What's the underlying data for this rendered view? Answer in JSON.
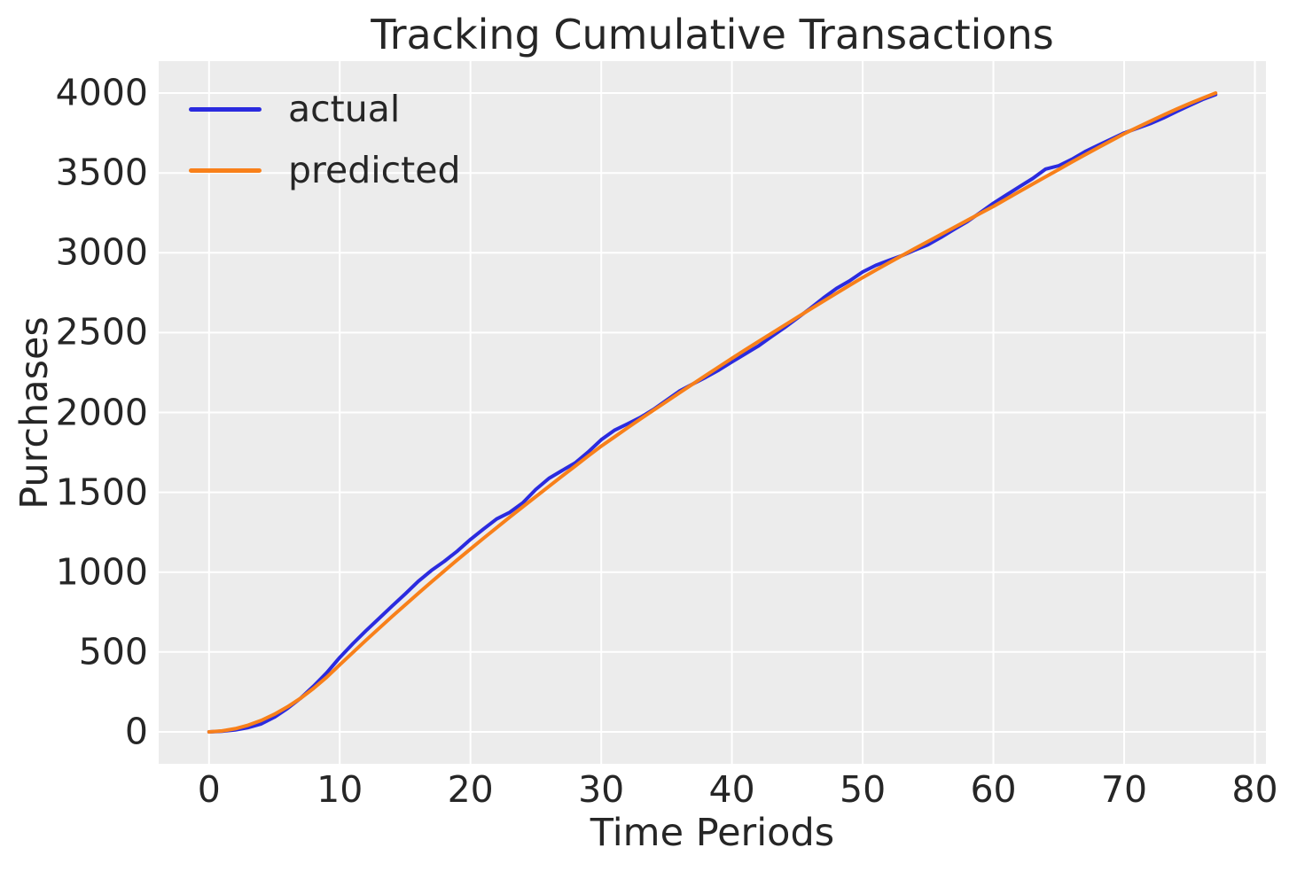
{
  "figure": {
    "background": "#ffffff",
    "plot_background": "#ececec",
    "grid_color": "#ffffff",
    "text_color": "#262626"
  },
  "chart_data": {
    "type": "line",
    "title": "Tracking Cumulative Transactions",
    "xlabel": "Time Periods",
    "ylabel": "Purchases",
    "grid": true,
    "legend_position": "upper left",
    "x_ticks": [
      0,
      10,
      20,
      30,
      40,
      50,
      60,
      70,
      80
    ],
    "y_ticks": [
      0,
      500,
      1000,
      1500,
      2000,
      2500,
      3000,
      3500,
      4000
    ],
    "xlim": [
      -3.85,
      80.85
    ],
    "ylim": [
      -200,
      4200
    ],
    "x": [
      0,
      1,
      2,
      3,
      4,
      5,
      6,
      7,
      8,
      9,
      10,
      11,
      12,
      13,
      14,
      15,
      16,
      17,
      18,
      19,
      20,
      21,
      22,
      23,
      24,
      25,
      26,
      27,
      28,
      29,
      30,
      31,
      32,
      33,
      34,
      35,
      36,
      37,
      38,
      39,
      40,
      41,
      42,
      43,
      44,
      45,
      46,
      47,
      48,
      49,
      50,
      51,
      52,
      53,
      54,
      55,
      56,
      57,
      58,
      59,
      60,
      61,
      62,
      63,
      64,
      65,
      66,
      67,
      68,
      69,
      70,
      71,
      72,
      73,
      74,
      75,
      76,
      77
    ],
    "series": [
      {
        "name": "actual",
        "color": "#2b2bdf",
        "values": [
          0,
          4,
          12,
          27,
          50,
          92,
          146,
          210,
          286,
          370,
          465,
          552,
          633,
          710,
          787,
          863,
          942,
          1010,
          1068,
          1132,
          1205,
          1270,
          1333,
          1374,
          1434,
          1518,
          1587,
          1636,
          1684,
          1752,
          1829,
          1888,
          1928,
          1969,
          2019,
          2077,
          2134,
          2178,
          2220,
          2266,
          2317,
          2366,
          2415,
          2474,
          2530,
          2591,
          2652,
          2717,
          2777,
          2824,
          2880,
          2921,
          2952,
          2982,
          3017,
          3051,
          3097,
          3147,
          3195,
          3252,
          3310,
          3362,
          3414,
          3465,
          3524,
          3545,
          3585,
          3633,
          3673,
          3712,
          3750,
          3780,
          3809,
          3844,
          3884,
          3922,
          3960,
          3990
        ]
      },
      {
        "name": "predicted",
        "color": "#f8801a",
        "values": [
          0,
          6,
          20,
          42,
          72,
          110,
          156,
          210,
          272,
          342,
          420,
          497,
          573,
          648,
          722,
          795,
          867,
          938,
          1008,
          1077,
          1145,
          1212,
          1278,
          1344,
          1409,
          1473,
          1537,
          1601,
          1664,
          1727,
          1789,
          1846,
          1903,
          1959,
          2014,
          2069,
          2124,
          2178,
          2232,
          2286,
          2339,
          2391,
          2443,
          2494,
          2545,
          2596,
          2647,
          2697,
          2747,
          2796,
          2845,
          2891,
          2937,
          2982,
          3027,
          3071,
          3115,
          3159,
          3203,
          3247,
          3290,
          3337,
          3384,
          3430,
          3476,
          3522,
          3568,
          3613,
          3658,
          3702,
          3745,
          3785,
          3824,
          3862,
          3899,
          3934,
          3968,
          4000
        ]
      }
    ]
  }
}
